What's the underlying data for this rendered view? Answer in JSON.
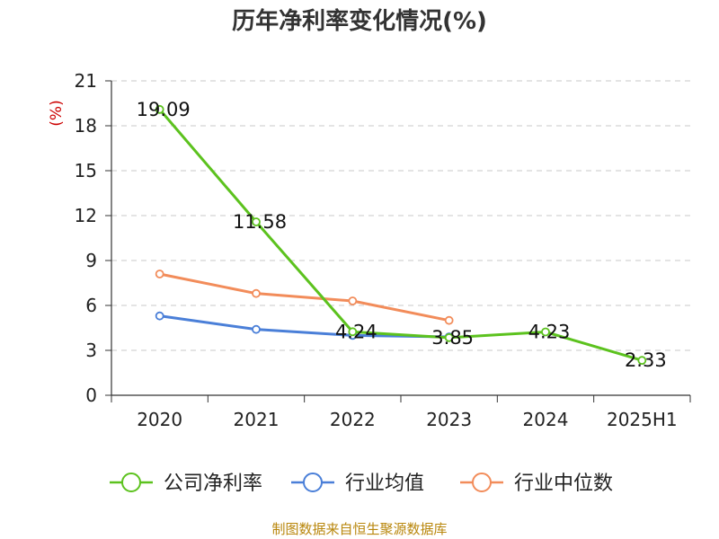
{
  "chart_data": {
    "type": "line",
    "title": "历年净利率变化情况(%)",
    "ylabel": "(%)",
    "xlabel": "",
    "categories": [
      "2020",
      "2021",
      "2022",
      "2023",
      "2024",
      "2025H1"
    ],
    "ylim": [
      0,
      21
    ],
    "yticks": [
      0,
      3,
      6,
      9,
      12,
      15,
      18,
      21
    ],
    "grid": true,
    "legend_position": "bottom",
    "series": [
      {
        "name": "公司净利率",
        "color": "#5cc21e",
        "values": [
          19.09,
          11.58,
          4.24,
          3.85,
          4.23,
          2.33
        ],
        "labels": [
          "19.09",
          "11.58",
          "4.24",
          "3.85",
          "4.23",
          "2.33"
        ]
      },
      {
        "name": "行业均值",
        "color": "#4a7fd8",
        "values": [
          5.3,
          4.4,
          4.0,
          3.9,
          null,
          null
        ]
      },
      {
        "name": "行业中位数",
        "color": "#f28c5a",
        "values": [
          8.1,
          6.8,
          6.3,
          5.0,
          null,
          null
        ]
      }
    ],
    "source": "制图数据来自恒生聚源数据库"
  }
}
